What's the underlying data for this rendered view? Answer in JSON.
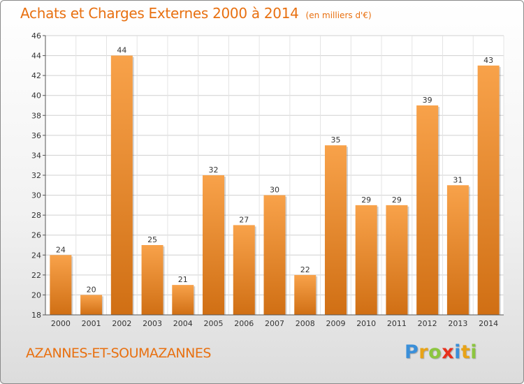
{
  "header": {
    "title": "Achats et Charges Externes 2000 à 2014",
    "unit": "(en milliers d'€)"
  },
  "footer": {
    "commune": "AZANNES-ET-SOUMAZANNES",
    "logo_letters": [
      "P",
      "r",
      "o",
      "x",
      "i",
      "t",
      "i"
    ],
    "logo_colors": [
      "#3a8fd9",
      "#e8a317",
      "#8cc63f",
      "#e8301c",
      "#3a8fd9",
      "#e8a317",
      "#8cc63f"
    ]
  },
  "colors": {
    "bar_top": "#f8a24a",
    "bar_bottom": "#d06f14",
    "grid": "#d0d0d0",
    "text": "#333333",
    "accent": "#e87010"
  },
  "chart_data": {
    "type": "bar",
    "categories": [
      "2000",
      "2001",
      "2002",
      "2003",
      "2004",
      "2005",
      "2006",
      "2007",
      "2008",
      "2009",
      "2010",
      "2011",
      "2012",
      "2013",
      "2014"
    ],
    "values": [
      24,
      20,
      44,
      25,
      21,
      32,
      27,
      30,
      22,
      35,
      29,
      29,
      39,
      31,
      43
    ],
    "yticks": [
      18,
      20,
      22,
      24,
      26,
      28,
      30,
      32,
      34,
      36,
      38,
      40,
      42,
      44,
      46
    ],
    "ylim": [
      18,
      46
    ],
    "grid": true,
    "legend": "none"
  }
}
